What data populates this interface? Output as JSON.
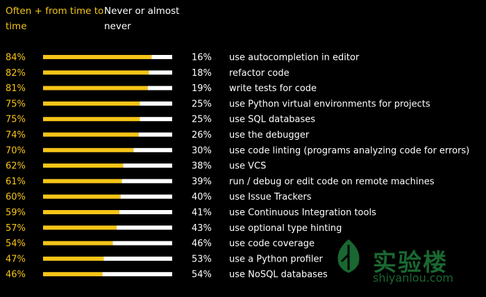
{
  "legend": {
    "often_label": "Often + from time to time",
    "never_label": "Never or almost never"
  },
  "colors": {
    "often": "#f5c518",
    "never": "#ffffff",
    "background": "#000000"
  },
  "watermark": {
    "brand": "实验楼",
    "site": "shiyanlou.com"
  },
  "chart_data": {
    "type": "bar",
    "stacked": true,
    "orientation": "horizontal",
    "title": "",
    "xlim": [
      0,
      100
    ],
    "unit": "%",
    "categories": [
      "use autocompletion in editor",
      "refactor code",
      "write tests for code",
      "use Python virtual environments for projects",
      "use SQL databases",
      "use the debugger",
      "use code linting (programs analyzing code for errors)",
      "use VCS",
      "run / debug or edit code on remote machines",
      "use Issue Trackers",
      "use Continuous Integration tools",
      "use optional type hinting",
      "use code coverage",
      "use a Python profiler",
      "use NoSQL databases"
    ],
    "series": [
      {
        "name": "Often + from time to time",
        "values": [
          84,
          82,
          81,
          75,
          75,
          74,
          70,
          62,
          61,
          60,
          59,
          57,
          54,
          47,
          46
        ]
      },
      {
        "name": "Never or almost never",
        "values": [
          16,
          18,
          19,
          25,
          25,
          26,
          30,
          38,
          39,
          40,
          41,
          43,
          46,
          53,
          54
        ]
      }
    ]
  }
}
